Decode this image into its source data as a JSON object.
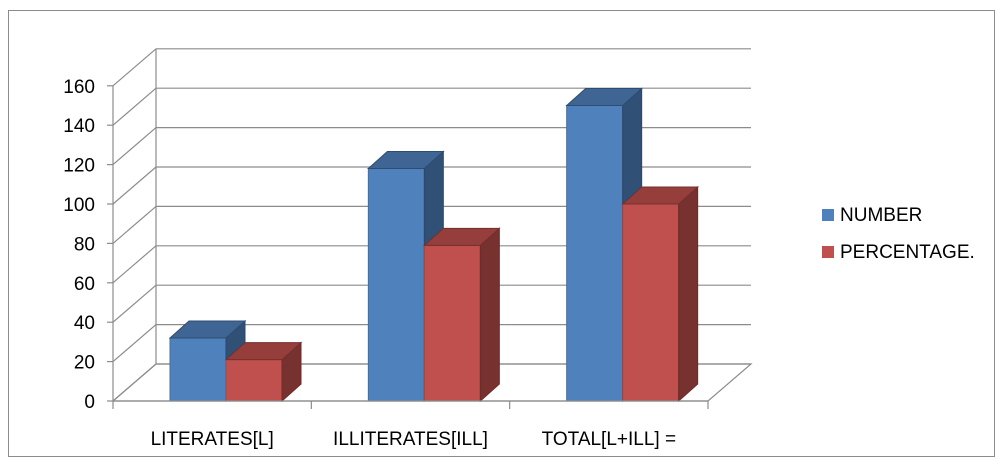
{
  "chart_data": {
    "type": "bar",
    "title": "",
    "xlabel": "",
    "ylabel": "",
    "categories": [
      "LITERATES[L]",
      "ILLITERATES[ILL]",
      "TOTAL[L+ILL] ="
    ],
    "series": [
      {
        "name": "NUMBER",
        "values": [
          32,
          118,
          150
        ],
        "color": "#4f81bd"
      },
      {
        "name": "PERCENTAGE.",
        "values": [
          21,
          79,
          100
        ],
        "color": "#c0504d"
      }
    ],
    "ylim": [
      0,
      160
    ],
    "yticks": [
      0,
      20,
      40,
      60,
      80,
      100,
      120,
      140,
      160
    ],
    "grid": true,
    "legend_position": "right",
    "three_d": true
  }
}
